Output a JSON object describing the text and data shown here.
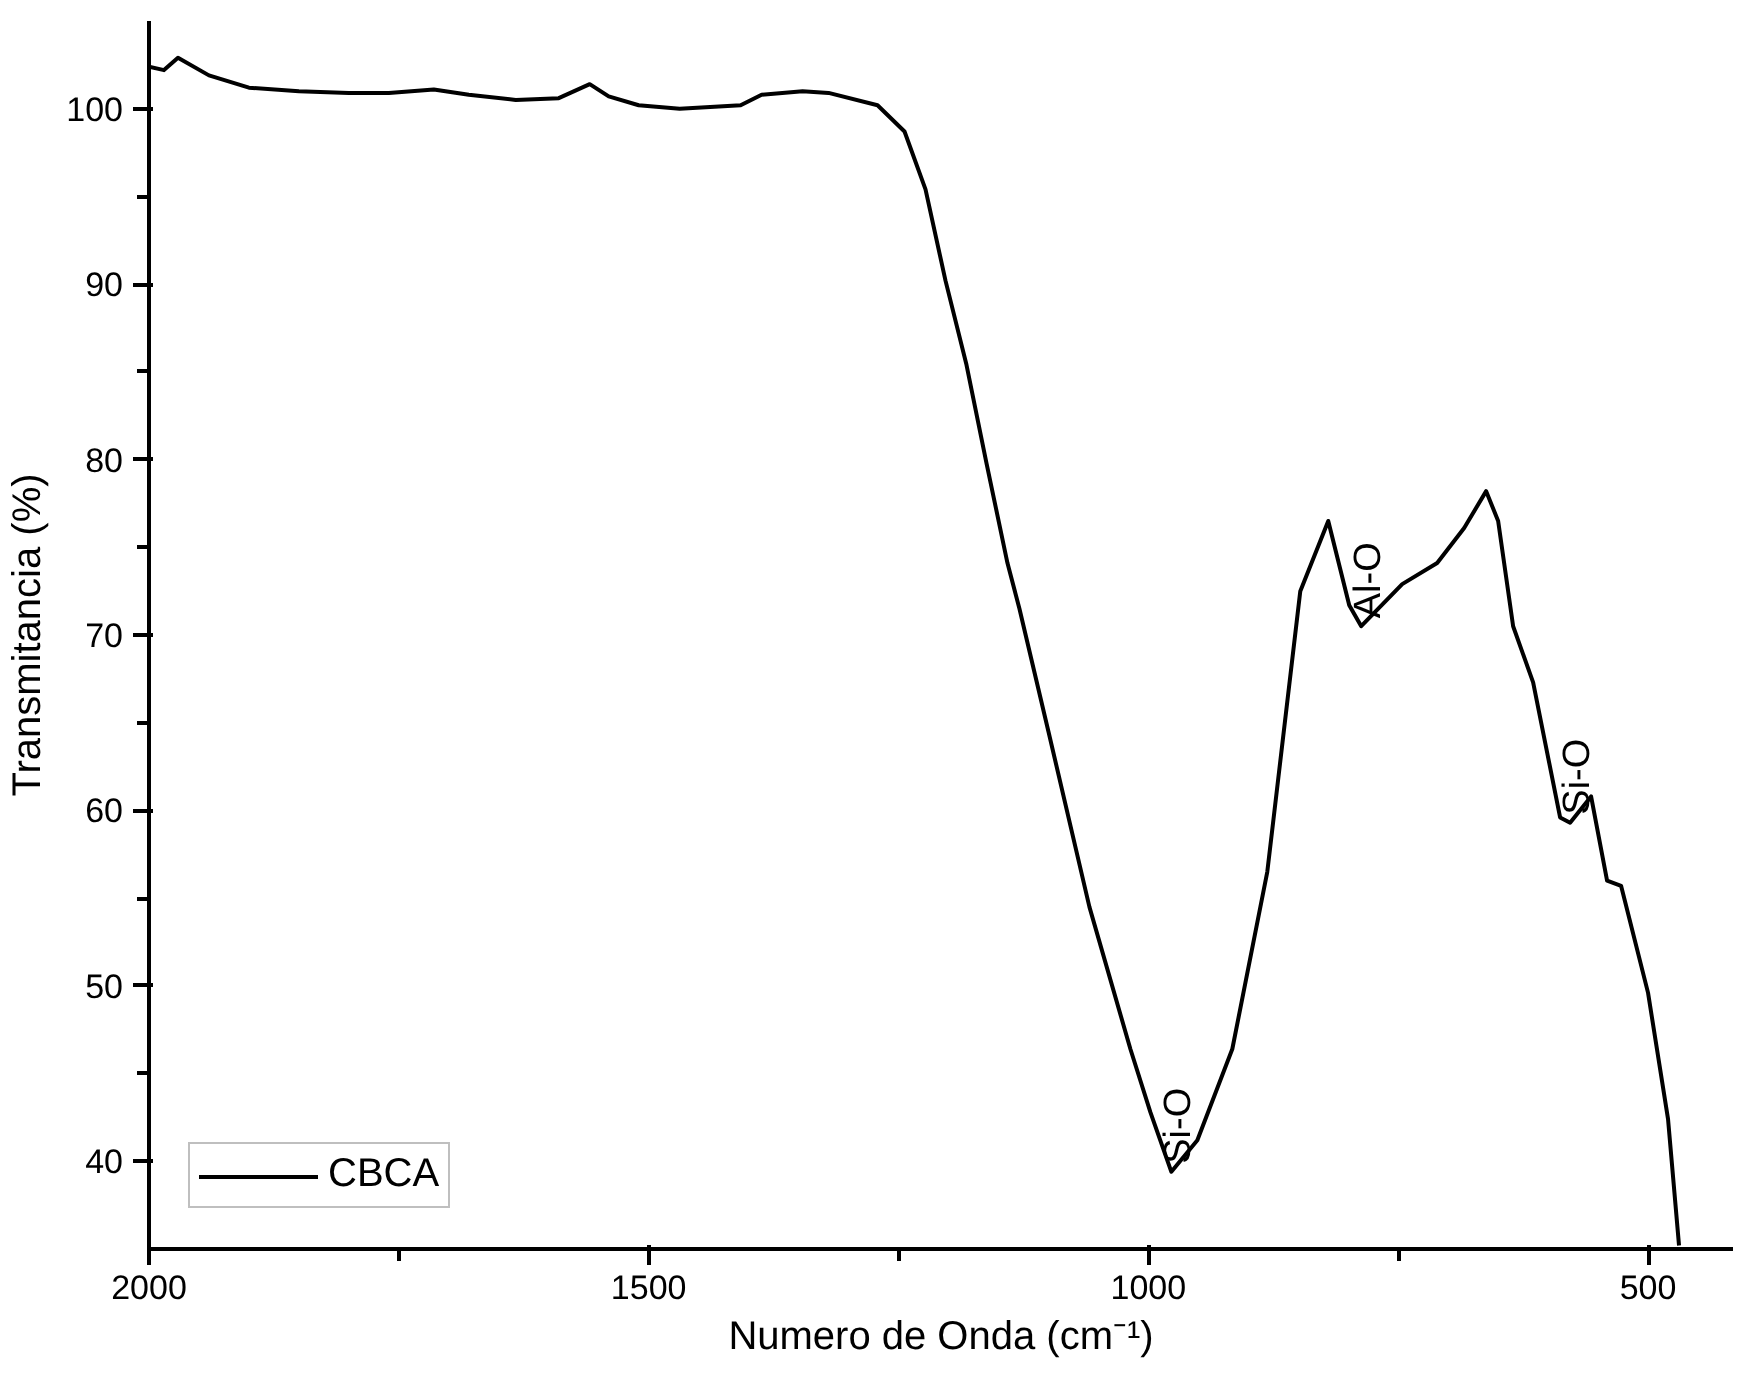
{
  "chart_data": {
    "type": "line",
    "xlabel": "Numero de Onda (cm⁻¹)",
    "ylabel": "Transmitancia (%)",
    "xlim": [
      2000,
      415
    ],
    "ylim": [
      35,
      105
    ],
    "xticks": [
      2000,
      {
        "value": 1750,
        "label": null
      },
      1500,
      {
        "value": 1250,
        "label": null
      },
      1000,
      {
        "value": 750,
        "label": null
      },
      500
    ],
    "yticks": [
      40,
      {
        "value": 45,
        "label": null
      },
      50,
      {
        "value": 55,
        "label": null
      },
      60,
      {
        "value": 65,
        "label": null
      },
      70,
      {
        "value": 75,
        "label": null
      },
      80,
      {
        "value": 85,
        "label": null
      },
      90,
      {
        "value": 95,
        "label": null
      },
      100
    ],
    "grid": false,
    "legend": "bottom left",
    "series": [
      {
        "name": "CBCA",
        "color": "#000000",
        "x": [
          2000,
          1985,
          1971,
          1940,
          1900,
          1850,
          1800,
          1760,
          1715,
          1680,
          1633,
          1590,
          1559,
          1540,
          1510,
          1469,
          1408,
          1387,
          1346,
          1320,
          1271,
          1244,
          1223,
          1203,
          1182,
          1162,
          1141,
          1129,
          1100,
          1059,
          1018,
          998,
          977,
          951,
          916,
          881,
          848,
          820,
          799,
          787,
          746,
          711,
          684,
          662,
          650,
          635,
          615,
          588,
          578,
          557,
          541,
          527,
          500,
          480,
          469
        ],
        "values": [
          102.4,
          102.2,
          102.9,
          101.9,
          101.2,
          101.0,
          100.9,
          100.9,
          101.1,
          100.8,
          100.5,
          100.6,
          101.4,
          100.7,
          100.2,
          100.0,
          100.2,
          100.8,
          101.0,
          100.9,
          100.2,
          98.7,
          95.4,
          90.2,
          85.4,
          79.8,
          74.1,
          71.5,
          64.5,
          54.5,
          46.4,
          42.8,
          39.4,
          41.2,
          46.4,
          56.5,
          72.5,
          76.5,
          71.7,
          70.5,
          72.9,
          74.1,
          76.1,
          78.2,
          76.5,
          70.5,
          67.3,
          59.6,
          59.3,
          60.8,
          56.0,
          55.7,
          49.6,
          42.4,
          35.2
        ]
      }
    ],
    "annotations": [
      {
        "text": "Si-O",
        "x": 977,
        "y": 39.4
      },
      {
        "text": "Al-O",
        "x": 787,
        "y": 70.5
      },
      {
        "text": "Si-O",
        "x": 578,
        "y": 59.3
      }
    ]
  }
}
